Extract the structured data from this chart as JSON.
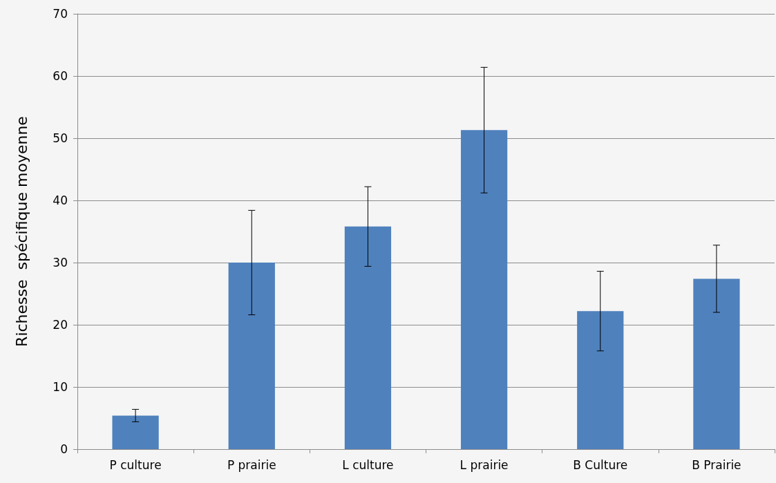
{
  "chart_data": {
    "type": "bar",
    "ylabel": "Richesse  spécifique moyenne",
    "categories": [
      "P culture",
      "P prairie",
      "L culture",
      "L prairie",
      "B Culture",
      "B Prairie"
    ],
    "values": [
      5.4,
      30,
      35.8,
      51.3,
      22.2,
      27.4
    ],
    "errors": [
      1,
      8.4,
      6.4,
      10.1,
      6.4,
      5.4
    ],
    "color": "#4f81bd",
    "ylim": [
      0,
      70
    ],
    "yticks": [
      0,
      10,
      20,
      30,
      40,
      50,
      60,
      70
    ],
    "grid": "y"
  }
}
